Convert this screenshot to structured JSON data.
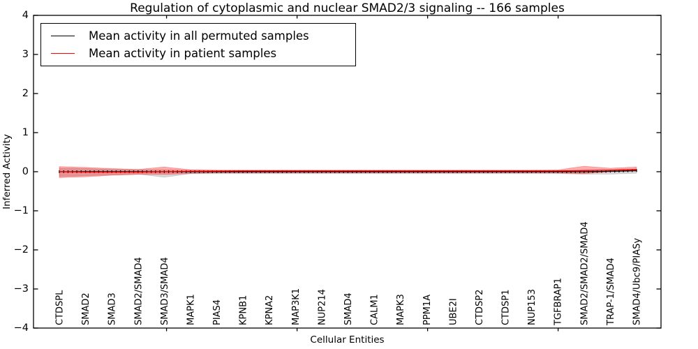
{
  "chart_data": {
    "type": "line",
    "title": "Regulation of cytoplasmic and nuclear SMAD2/3 signaling -- 166 samples",
    "xlabel": "Cellular Entities",
    "ylabel": "Inferred Activity",
    "ylim": [
      -4,
      4
    ],
    "yticks": [
      4,
      3,
      2,
      1,
      0,
      -1,
      -2,
      -3,
      -4
    ],
    "grid": false,
    "legend_position": "upper left",
    "n_points": 133,
    "categories": [
      "CTDSPL",
      "SMAD2",
      "SMAD3",
      "SMAD2/SMAD4",
      "SMAD3/SMAD4",
      "MAPK1",
      "PIAS4",
      "KPNB1",
      "KPNA2",
      "MAP3K1",
      "NUP214",
      "SMAD4",
      "CALM1",
      "MAPK3",
      "PPM1A",
      "UBE2I",
      "CTDSP2",
      "CTDSP1",
      "NUP153",
      "TGFBRAP1",
      "SMAD2/SMAD2/SMAD4",
      "TRAP-1/SMAD4",
      "SMAD4/Ubc9/PIASy"
    ],
    "series": [
      {
        "name": "Mean activity in all permuted samples",
        "color": "#000000",
        "marker": "vertical-tick",
        "values": [
          0,
          0,
          0,
          0,
          0,
          0,
          0,
          0,
          0,
          0,
          0,
          0,
          0,
          0,
          0,
          0,
          0,
          0,
          0,
          0,
          0,
          0.01,
          0.03
        ],
        "band": {
          "color": "rgba(0,0,0,0.15)",
          "upper": [
            0.09,
            0.08,
            0.06,
            0.05,
            0.05,
            0.04,
            0.03,
            0.03,
            0.03,
            0.03,
            0.03,
            0.03,
            0.03,
            0.03,
            0.03,
            0.03,
            0.03,
            0.03,
            0.03,
            0.03,
            0.04,
            0.03,
            0.05
          ],
          "lower": [
            -0.12,
            -0.1,
            -0.08,
            -0.06,
            -0.14,
            -0.05,
            -0.05,
            -0.05,
            -0.05,
            -0.05,
            -0.05,
            -0.05,
            -0.05,
            -0.05,
            -0.05,
            -0.05,
            -0.05,
            -0.05,
            -0.05,
            -0.05,
            -0.06,
            -0.06,
            -0.04
          ]
        }
      },
      {
        "name": "Mean activity in patient samples",
        "color": "#ff0000",
        "marker": "none",
        "values": [
          0,
          -0.01,
          -0.01,
          -0.01,
          0,
          0.01,
          0.015,
          0.02,
          0.02,
          0.02,
          0.02,
          0.02,
          0.02,
          0.02,
          0.02,
          0.02,
          0.02,
          0.02,
          0.02,
          0.02,
          0.03,
          0.04,
          0.06
        ],
        "band": {
          "color": "rgba(255,0,0,0.32)",
          "upper": [
            0.13,
            0.11,
            0.08,
            0.06,
            0.12,
            0.05,
            0.04,
            0.04,
            0.04,
            0.04,
            0.04,
            0.04,
            0.04,
            0.04,
            0.04,
            0.04,
            0.04,
            0.04,
            0.04,
            0.045,
            0.14,
            0.09,
            0.12
          ],
          "lower": [
            -0.15,
            -0.13,
            -0.09,
            -0.07,
            -0.07,
            -0.045,
            -0.03,
            -0.03,
            -0.03,
            -0.03,
            -0.03,
            -0.03,
            -0.03,
            -0.03,
            -0.03,
            -0.03,
            -0.03,
            -0.03,
            -0.03,
            -0.035,
            -0.05,
            0,
            0.01
          ]
        }
      }
    ]
  }
}
